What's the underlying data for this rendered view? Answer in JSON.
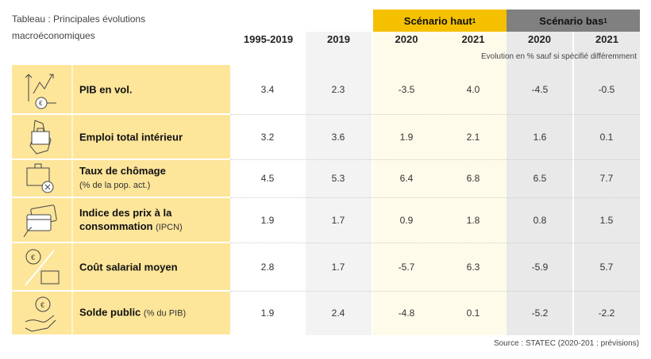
{
  "title": "Tableau : Principales évolutions macroéconomiques",
  "scenarios": [
    {
      "label": "Scénario haut",
      "sup": "1",
      "color": "#f5c000"
    },
    {
      "label": "Scénario bas",
      "sup": "1",
      "color": "#808080"
    }
  ],
  "years": [
    "1995-2019",
    "2019",
    "2020",
    "2021",
    "2020",
    "2021"
  ],
  "note": "Evolution en % sauf si spécifié différemment",
  "rows": [
    {
      "icon": "growth-chart-coins-icon",
      "label": "PIB en vol.",
      "sub": "",
      "values": [
        "3.4",
        "2.3",
        "-3.5",
        "4.0",
        "-4.5",
        "-0.5"
      ]
    },
    {
      "icon": "briefcase-luxembourg-map-icon",
      "label": "Emploi total intérieur",
      "sub": "",
      "values": [
        "3.2",
        "3.6",
        "1.9",
        "2.1",
        "1.6",
        "0.1"
      ]
    },
    {
      "icon": "briefcase-cross-icon",
      "label": "Taux de chômage",
      "sub": "(% de la pop. act.)",
      "values": [
        "4.5",
        "5.3",
        "6.4",
        "6.8",
        "6.5",
        "7.7"
      ]
    },
    {
      "icon": "hand-credit-card-icon",
      "label": "Indice des prix à la consommation",
      "sub": "(IPCN)",
      "values": [
        "1.9",
        "1.7",
        "0.9",
        "1.8",
        "0.8",
        "1.5"
      ]
    },
    {
      "icon": "euro-coin-briefcase-icon",
      "label": "Coût salarial moyen",
      "sub": "",
      "values": [
        "2.8",
        "1.7",
        "-5.7",
        "6.3",
        "-5.9",
        "5.7"
      ]
    },
    {
      "icon": "hand-euro-coin-icon",
      "label": "Solde public",
      "sub": "(% du PIB)",
      "values": [
        "1.9",
        "2.4",
        "-4.8",
        "0.1",
        "-5.2",
        "-2.2"
      ]
    }
  ],
  "source": "Source : STATEC (2020-201 : prévisions)"
}
